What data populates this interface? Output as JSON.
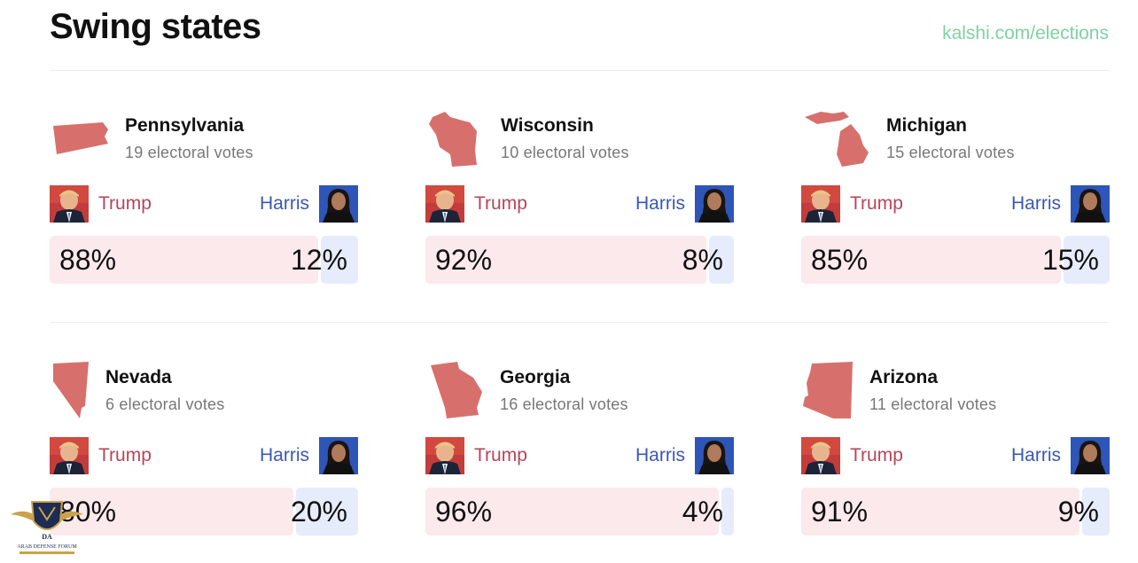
{
  "header": {
    "title": "Swing states",
    "site_link": "kalshi.com/elections"
  },
  "colors": {
    "republican": "#b6455a",
    "democrat": "#3a57b6",
    "republican_bar": "#fbe9ec",
    "democrat_bar": "#e6ecfb",
    "map_fill": "#d7706c",
    "link": "#7fd1a2"
  },
  "candidates": {
    "republican": "Trump",
    "democrat": "Harris"
  },
  "states": [
    {
      "name": "Pennsylvania",
      "electoral": "19 electoral votes",
      "trump_pct": "88%",
      "harris_pct": "12%",
      "trump_share": 88,
      "harris_share": 12,
      "map_icon": "pennsylvania-map-icon"
    },
    {
      "name": "Wisconsin",
      "electoral": "10 electoral votes",
      "trump_pct": "92%",
      "harris_pct": "8%",
      "trump_share": 92,
      "harris_share": 8,
      "map_icon": "wisconsin-map-icon"
    },
    {
      "name": "Michigan",
      "electoral": "15 electoral votes",
      "trump_pct": "85%",
      "harris_pct": "15%",
      "trump_share": 85,
      "harris_share": 15,
      "map_icon": "michigan-map-icon"
    },
    {
      "name": "Nevada",
      "electoral": "6 electoral votes",
      "trump_pct": "80%",
      "harris_pct": "20%",
      "trump_share": 80,
      "harris_share": 20,
      "map_icon": "nevada-map-icon"
    },
    {
      "name": "Georgia",
      "electoral": "16 electoral votes",
      "trump_pct": "96%",
      "harris_pct": "4%",
      "trump_share": 96,
      "harris_share": 4,
      "map_icon": "georgia-map-icon"
    },
    {
      "name": "Arizona",
      "electoral": "11 electoral votes",
      "trump_pct": "91%",
      "harris_pct": "9%",
      "trump_share": 91,
      "harris_share": 9,
      "map_icon": "arizona-map-icon"
    }
  ],
  "watermark": {
    "text": "ARAB DEFENSE FORUM",
    "logo": "shield-eagle-logo"
  }
}
